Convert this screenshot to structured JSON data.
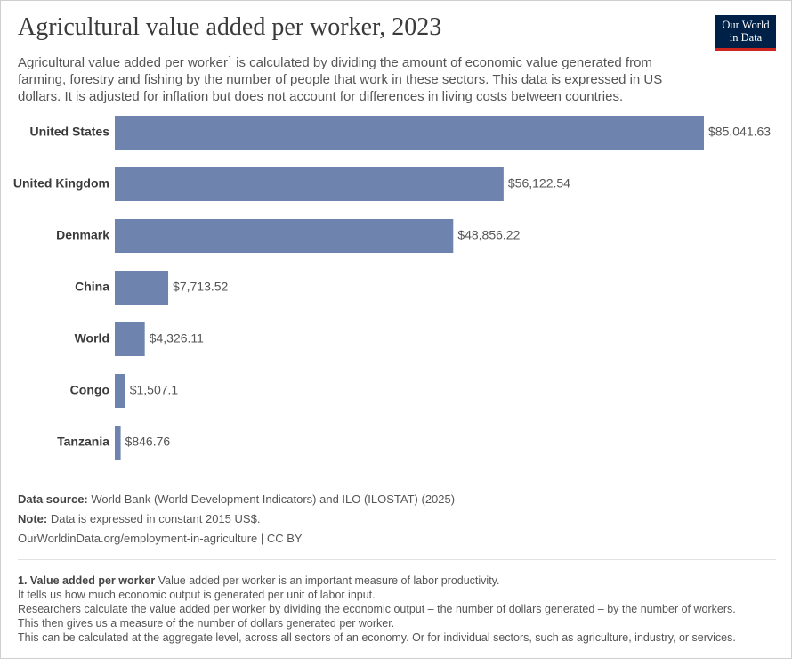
{
  "header": {
    "title": "Agricultural value added per worker, 2023",
    "subtitle": {
      "text_1": "Agricultural value added per worker",
      "note_ref": "1",
      "text_2": " is calculated by dividing the amount of economic value generated from farming, forestry and fishing by the number of people that work in these sectors. This data is expressed in US dollars. It is adjusted for inflation but does not account for differences in living costs between countries."
    },
    "logo": [
      "Our World",
      "in Data"
    ]
  },
  "chart_data": {
    "type": "bar",
    "orientation": "horizontal",
    "categories": [
      "United States",
      "United Kingdom",
      "Denmark",
      "China",
      "World",
      "Congo",
      "Tanzania"
    ],
    "values": [
      85041.63,
      56122.54,
      48856.22,
      7713.52,
      4326.11,
      1507.1,
      846.76
    ],
    "value_labels": [
      "$85,041.63",
      "$56,122.54",
      "$48,856.22",
      "$7,713.52",
      "$4,326.11",
      "$1,507.1",
      "$846.76"
    ],
    "color": "#6e84ae",
    "xlim": [
      0,
      85041.63
    ]
  },
  "footer": {
    "source_label": "Data source:",
    "source": "World Bank (World Development Indicators) and ILO (ILOSTAT) (2025)",
    "note_label": "Note:",
    "note": "Data is expressed in constant 2015 US$.",
    "url": "OurWorldinData.org/employment-in-agriculture | CC BY"
  },
  "footnote": {
    "title": "1. Value added per worker",
    "lines": [
      "Value added per worker is an important measure of labor productivity.",
      "It tells us how much economic output is generated per unit of labor input.",
      "Researchers calculate the value added per worker by dividing the economic output – the number of dollars generated – by the number of workers.",
      "This then gives us a measure of the number of dollars generated per worker.",
      "This can be calculated at the aggregate level, across all sectors of an economy. Or for individual sectors, such as agriculture, industry, or services."
    ]
  }
}
